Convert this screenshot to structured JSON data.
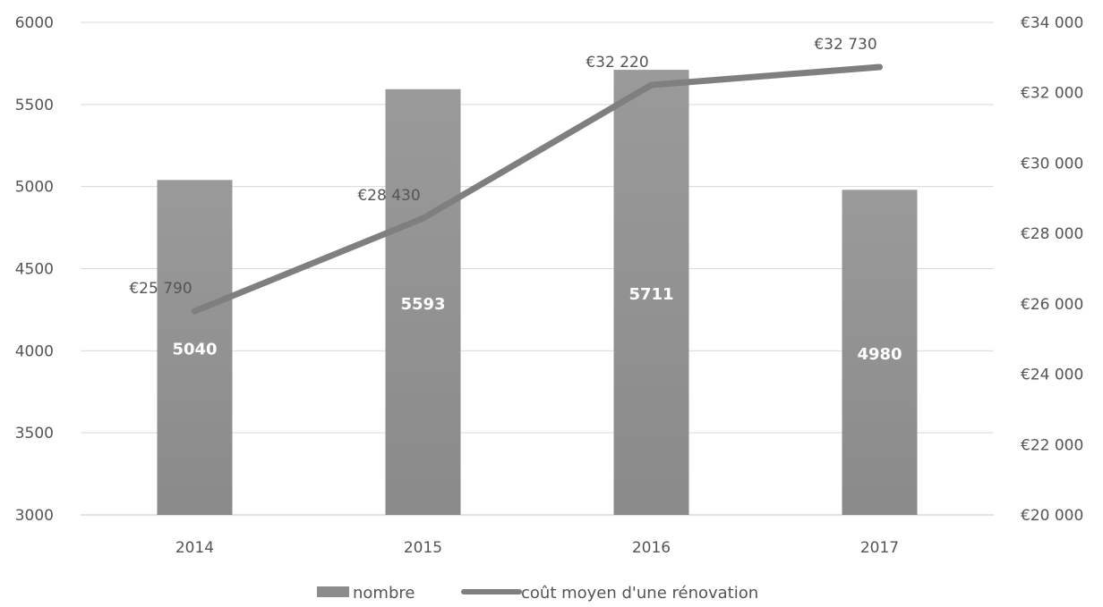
{
  "chart_data": {
    "type": "bar",
    "categories": [
      "2014",
      "2015",
      "2016",
      "2017"
    ],
    "series": [
      {
        "name": "nombre",
        "type": "bar",
        "axis": "left",
        "values": [
          5040,
          5593,
          5711,
          4980
        ],
        "labels": [
          "5040",
          "5593",
          "5711",
          "4980"
        ],
        "color": "#8c8c8c"
      },
      {
        "name": "coût moyen d'une rénovation",
        "type": "line",
        "axis": "right",
        "values": [
          25790,
          28430,
          32220,
          32730
        ],
        "labels": [
          "€25 790",
          "€28 430",
          "€32 220",
          "€32 730"
        ],
        "color": "#7f7f7f"
      }
    ],
    "y_left": {
      "min": 3000,
      "max": 6000,
      "ticks": [
        3000,
        3500,
        4000,
        4500,
        5000,
        5500,
        6000
      ],
      "tick_labels": [
        "3000",
        "3500",
        "4000",
        "4500",
        "5000",
        "5500",
        "6000"
      ]
    },
    "y_right": {
      "min": 20000,
      "max": 34000,
      "ticks": [
        20000,
        22000,
        24000,
        26000,
        28000,
        30000,
        32000,
        34000
      ],
      "tick_labels": [
        "€20 000",
        "€22 000",
        "€24 000",
        "€26 000",
        "€28 000",
        "€30 000",
        "€32 000",
        "€34 000"
      ]
    },
    "title": "",
    "xlabel": "",
    "ylabel": "",
    "grid": true,
    "legend": "bottom-center",
    "gridline_color": "#d9d9d9",
    "axis_text_color": "#555555"
  }
}
